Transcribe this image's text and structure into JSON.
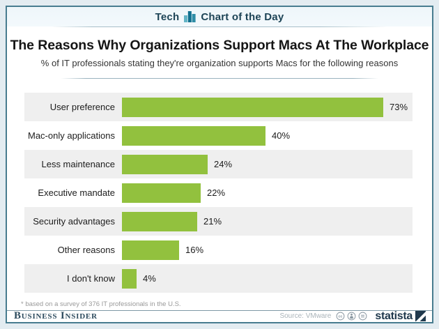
{
  "header": {
    "section_label": "Tech",
    "title": "Chart of the Day"
  },
  "headline": {
    "title": "The Reasons Why Organizations Support Macs At The Workplace",
    "subtitle": "% of IT professionals stating they're organization supports Macs for the following reasons"
  },
  "chart_data": {
    "type": "bar",
    "orientation": "horizontal",
    "categories": [
      "User preference",
      "Mac-only applications",
      "Less maintenance",
      "Executive mandate",
      "Security advantages",
      "Other reasons",
      "I don't know"
    ],
    "values": [
      73,
      40,
      24,
      22,
      21,
      16,
      4
    ],
    "value_labels": [
      "73%",
      "40%",
      "24%",
      "22%",
      "21%",
      "16%",
      "4%"
    ],
    "unit": "%",
    "xlim": [
      0,
      80
    ],
    "grid": false,
    "legend": false,
    "bar_color": "#92c13e",
    "row_alt_color": "#efefef",
    "row_base_color": "#ffffff"
  },
  "footnote": "* based on a survey of 376 IT professionals in the U.S.",
  "footer": {
    "brand": "Business Insider",
    "source": "Source: VMware",
    "statista": "statista"
  },
  "colors": {
    "accent_teal_dark": "#0f6f8e",
    "accent_teal_light": "#64b5c6",
    "accent_teal_mid": "#2f8da6",
    "frame_border": "#477c8f",
    "page_margin": "#e3ecf1",
    "header_text": "#1d4456",
    "brand_navy": "#2d4b5e",
    "statista_navy": "#20394d"
  }
}
